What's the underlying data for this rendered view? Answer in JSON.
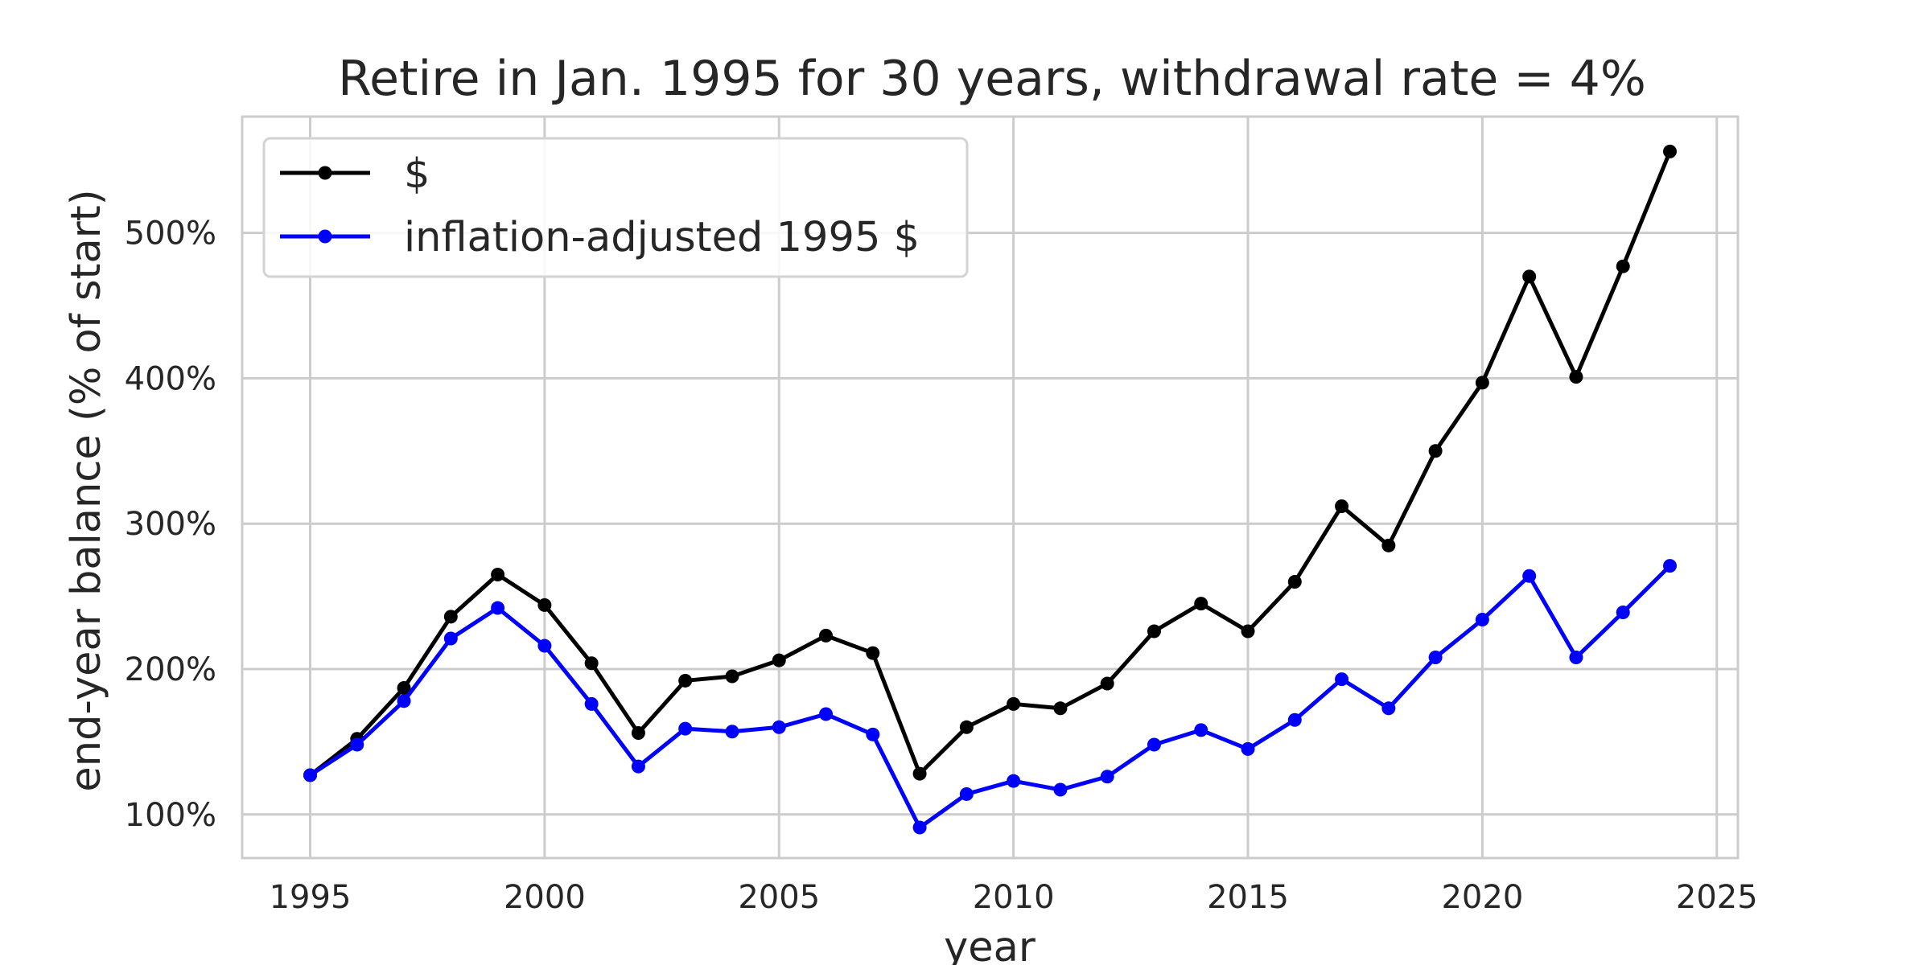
{
  "chart_data": {
    "type": "line",
    "title": "Retire in Jan. 1995 for 30 years, withdrawal rate = 4%",
    "xlabel": "year",
    "ylabel": "end-year balance (% of start)",
    "xlim": [
      1993.55,
      2025.45
    ],
    "ylim": [
      70,
      580
    ],
    "x_ticks": [
      1995,
      2000,
      2005,
      2010,
      2015,
      2020,
      2025
    ],
    "y_ticks": [
      100,
      200,
      300,
      400,
      500
    ],
    "y_tick_suffix": "%",
    "grid": true,
    "legend_position": "top-left",
    "x": [
      1995,
      1996,
      1997,
      1998,
      1999,
      2000,
      2001,
      2002,
      2003,
      2004,
      2005,
      2006,
      2007,
      2008,
      2009,
      2010,
      2011,
      2012,
      2013,
      2014,
      2015,
      2016,
      2017,
      2018,
      2019,
      2020,
      2021,
      2022,
      2023,
      2024
    ],
    "series": [
      {
        "name": "$",
        "color": "#000000",
        "values": [
          127,
          152,
          187,
          236,
          265,
          244,
          204,
          156,
          192,
          195,
          206,
          223,
          211,
          128,
          160,
          176,
          173,
          190,
          226,
          245,
          226,
          260,
          312,
          285,
          350,
          397,
          470,
          401,
          477,
          556
        ]
      },
      {
        "name": "inflation-adjusted 1995 $",
        "color": "#0000ff",
        "values": [
          127,
          148,
          178,
          221,
          242,
          216,
          176,
          133,
          159,
          157,
          160,
          169,
          155,
          91,
          114,
          123,
          117,
          126,
          148,
          158,
          145,
          165,
          193,
          173,
          208,
          234,
          264,
          208,
          239,
          271
        ]
      }
    ]
  }
}
